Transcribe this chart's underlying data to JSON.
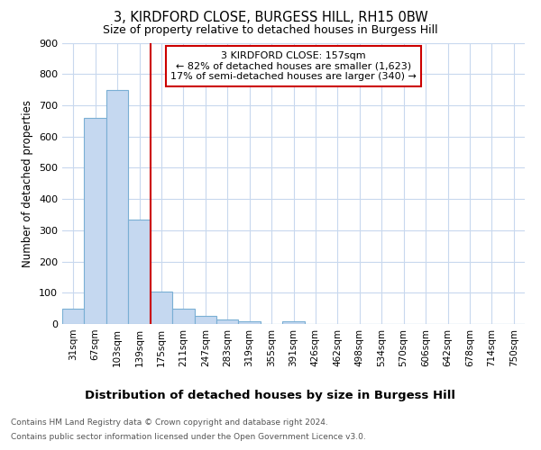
{
  "title_line1": "3, KIRDFORD CLOSE, BURGESS HILL, RH15 0BW",
  "title_line2": "Size of property relative to detached houses in Burgess Hill",
  "xlabel": "Distribution of detached houses by size in Burgess Hill",
  "ylabel": "Number of detached properties",
  "footer_line1": "Contains HM Land Registry data © Crown copyright and database right 2024.",
  "footer_line2": "Contains public sector information licensed under the Open Government Licence v3.0.",
  "bin_labels": [
    "31sqm",
    "67sqm",
    "103sqm",
    "139sqm",
    "175sqm",
    "211sqm",
    "247sqm",
    "283sqm",
    "319sqm",
    "355sqm",
    "391sqm",
    "426sqm",
    "462sqm",
    "498sqm",
    "534sqm",
    "570sqm",
    "606sqm",
    "642sqm",
    "678sqm",
    "714sqm",
    "750sqm"
  ],
  "bar_heights": [
    50,
    660,
    750,
    335,
    105,
    50,
    25,
    13,
    8,
    0,
    8,
    0,
    0,
    0,
    0,
    0,
    0,
    0,
    0,
    0,
    0
  ],
  "bar_color": "#c5d8f0",
  "bar_edge_color": "#7aafd4",
  "red_line_x": 3.5,
  "red_line_color": "#cc0000",
  "annotation_text_line1": "3 KIRDFORD CLOSE: 157sqm",
  "annotation_text_line2": "← 82% of detached houses are smaller (1,623)",
  "annotation_text_line3": "17% of semi-detached houses are larger (340) →",
  "annotation_box_color": "#cc0000",
  "ylim": [
    0,
    900
  ],
  "yticks": [
    0,
    100,
    200,
    300,
    400,
    500,
    600,
    700,
    800,
    900
  ],
  "background_color": "#ffffff",
  "grid_color": "#c8d8ee"
}
